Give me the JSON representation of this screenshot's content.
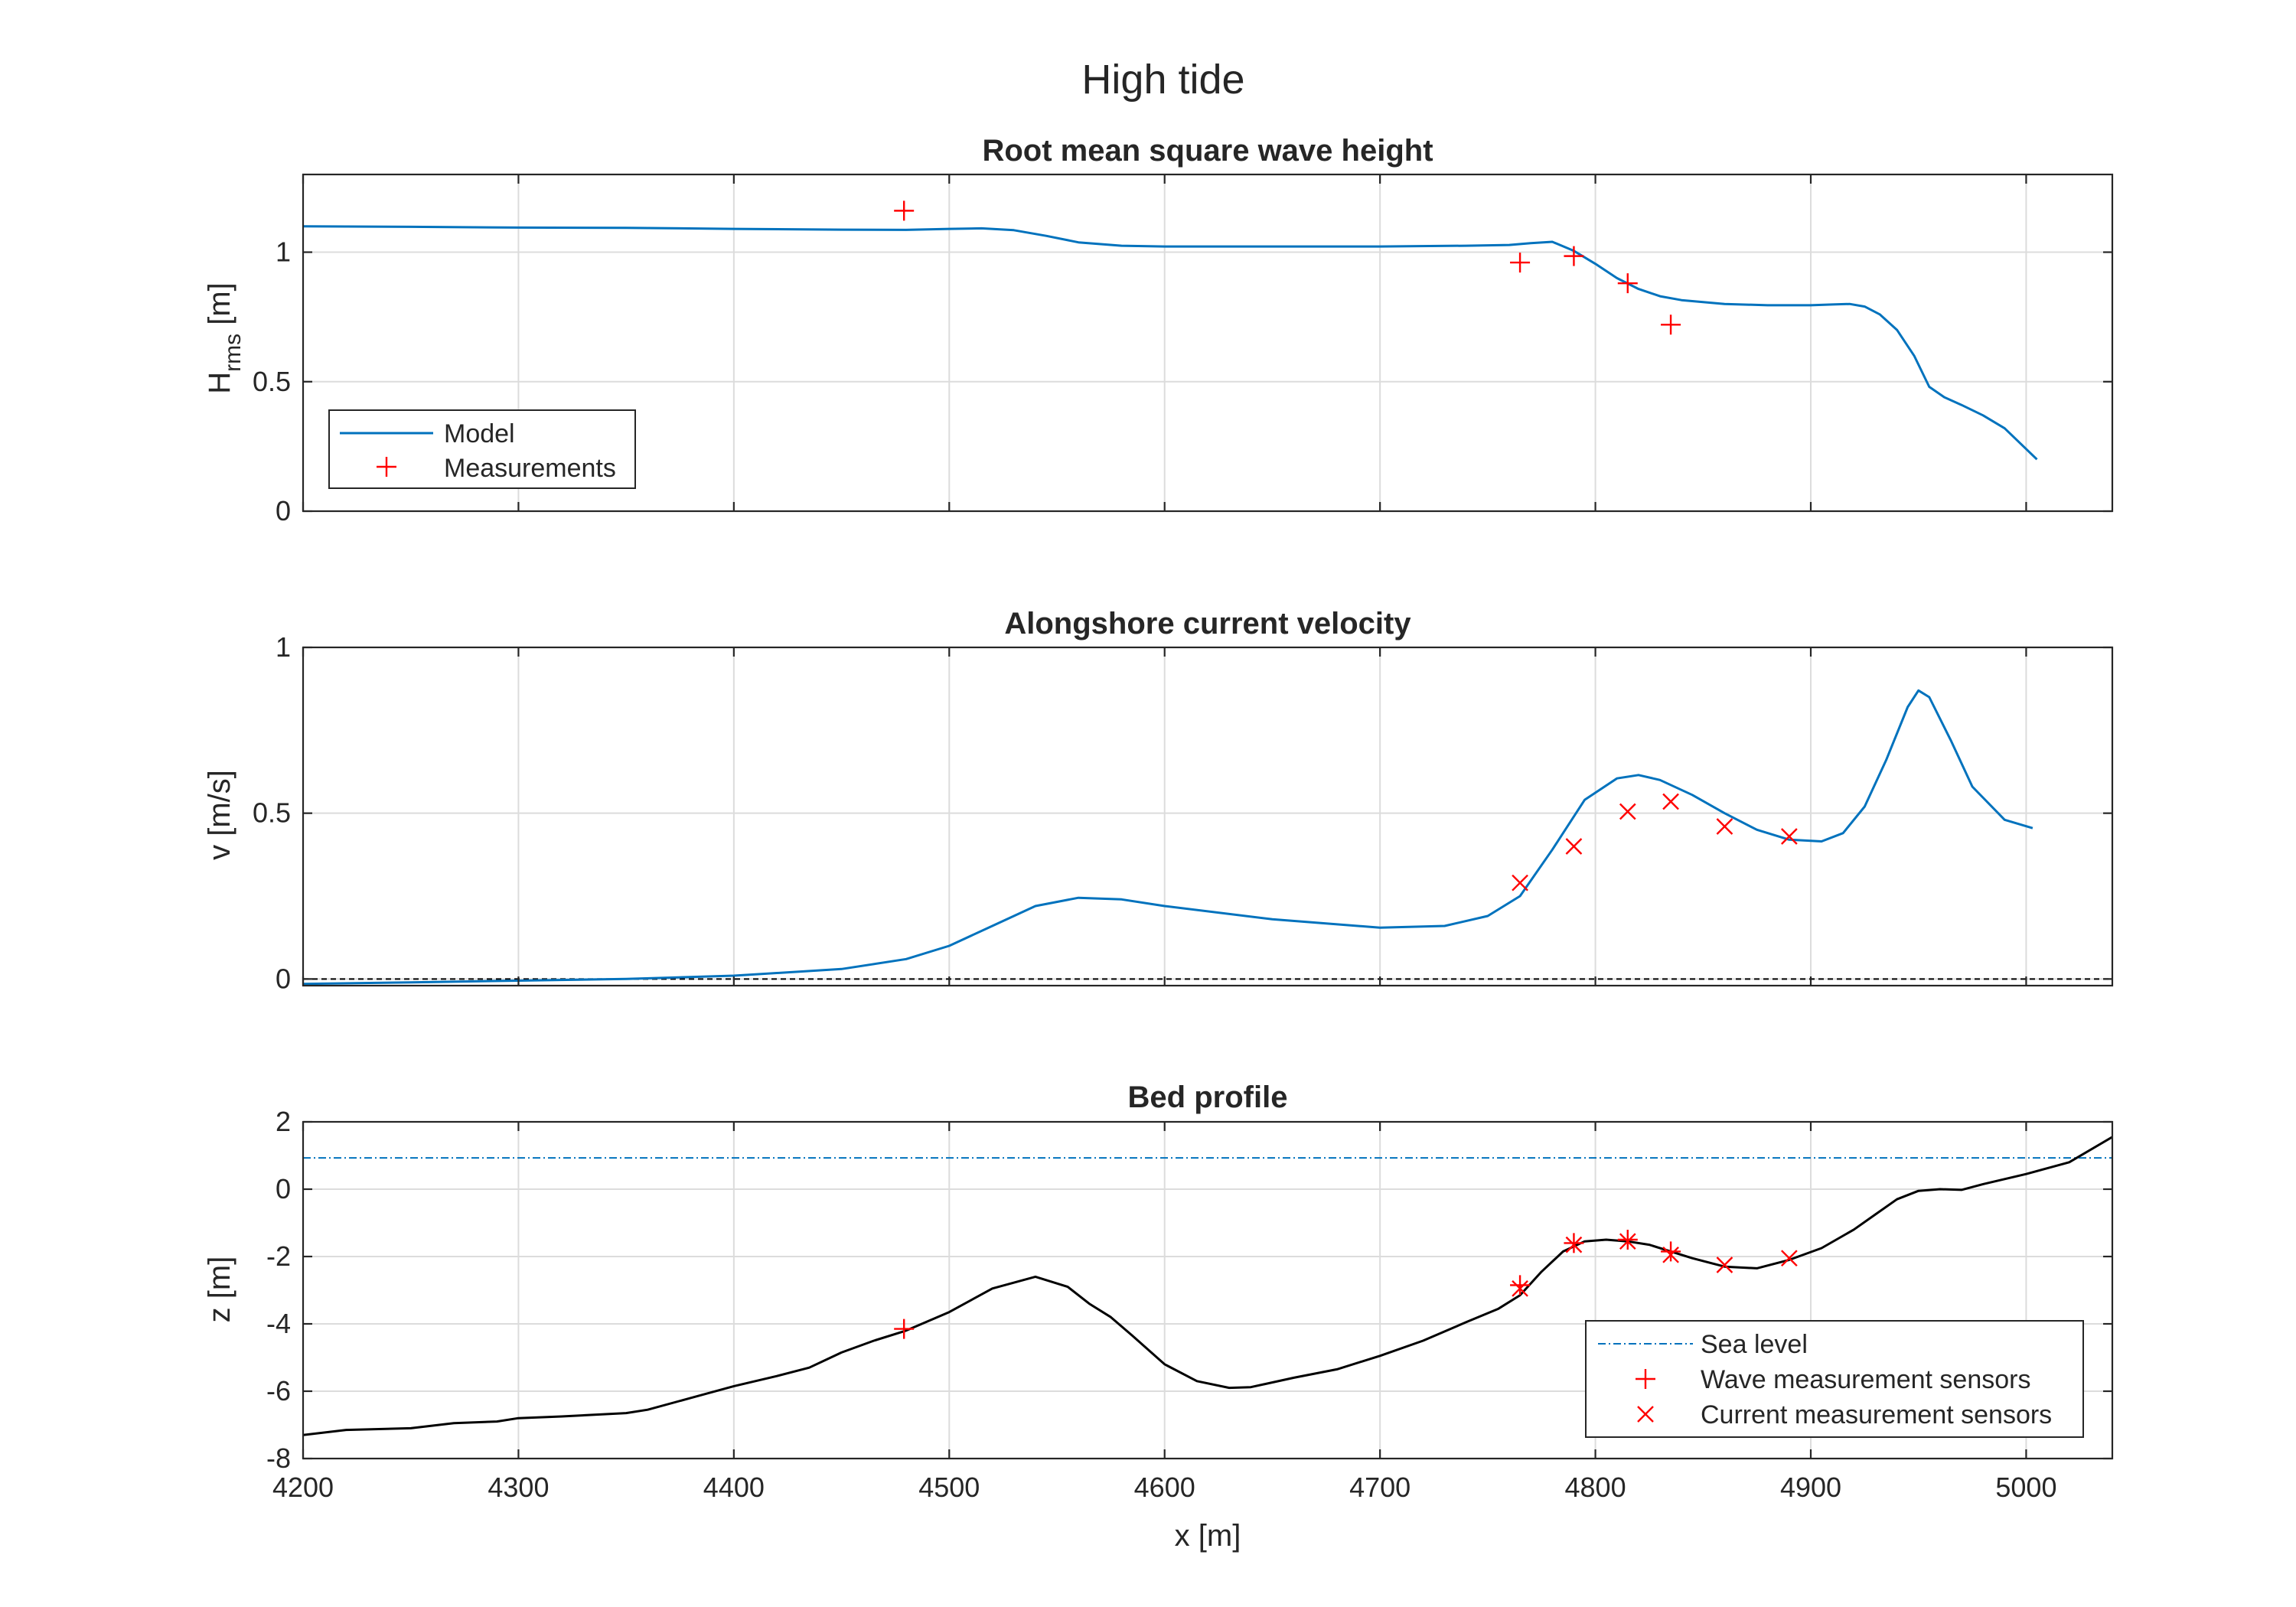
{
  "figure": {
    "title": "High tide"
  },
  "colors": {
    "model": "#0072BD",
    "measurement": "#FF0000",
    "bed": "#000000",
    "zero_line": "#000000",
    "sea_level": "#0072BD"
  },
  "chart_data": [
    {
      "type": "line",
      "title": "Root mean square wave height",
      "ylabel_main": "H",
      "ylabel_sub": "rms",
      "ylabel_unit": " [m]",
      "xlim": [
        4200,
        5040
      ],
      "ylim": [
        0,
        1.3
      ],
      "yticks": [
        0,
        0.5,
        1
      ],
      "ytick_labels": [
        "0",
        "0.5",
        "1"
      ],
      "grid": true,
      "legend": {
        "placement": "bottom-left",
        "entries": [
          "Model",
          "Measurements"
        ]
      },
      "series": [
        {
          "name": "Model",
          "kind": "line",
          "x": [
            4200,
            4250,
            4300,
            4350,
            4400,
            4450,
            4480,
            4500,
            4515,
            4530,
            4545,
            4560,
            4580,
            4600,
            4650,
            4700,
            4740,
            4760,
            4770,
            4780,
            4790,
            4800,
            4810,
            4820,
            4830,
            4840,
            4860,
            4880,
            4900,
            4910,
            4918,
            4925,
            4932,
            4940,
            4948,
            4955,
            4962,
            4970,
            4980,
            4990,
            5005
          ],
          "y": [
            1.1,
            1.098,
            1.095,
            1.094,
            1.09,
            1.087,
            1.086,
            1.09,
            1.092,
            1.085,
            1.063,
            1.038,
            1.025,
            1.022,
            1.022,
            1.022,
            1.025,
            1.028,
            1.035,
            1.04,
            1.005,
            0.955,
            0.9,
            0.858,
            0.83,
            0.815,
            0.8,
            0.795,
            0.795,
            0.798,
            0.8,
            0.79,
            0.76,
            0.7,
            0.6,
            0.48,
            0.44,
            0.41,
            0.37,
            0.32,
            0.2
          ]
        },
        {
          "name": "Measurements",
          "kind": "plus",
          "x": [
            4479,
            4765,
            4790,
            4815,
            4835
          ],
          "y": [
            1.16,
            0.96,
            0.985,
            0.88,
            0.72
          ]
        }
      ]
    },
    {
      "type": "line",
      "title": "Alongshore current velocity",
      "ylabel": "v [m/s]",
      "xlim": [
        4200,
        5040
      ],
      "ylim": [
        -0.02,
        1
      ],
      "yticks": [
        0,
        0.5,
        1
      ],
      "ytick_labels": [
        "0",
        "0.5",
        "1"
      ],
      "grid": true,
      "series": [
        {
          "kind": "line",
          "x": [
            4200,
            4250,
            4300,
            4350,
            4400,
            4450,
            4480,
            4500,
            4520,
            4540,
            4560,
            4580,
            4600,
            4650,
            4700,
            4730,
            4750,
            4765,
            4780,
            4795,
            4810,
            4820,
            4830,
            4845,
            4860,
            4875,
            4890,
            4905,
            4915,
            4925,
            4935,
            4945,
            4950,
            4955,
            4965,
            4975,
            4990,
            5003
          ],
          "y": [
            -0.015,
            -0.01,
            -0.005,
            0.0,
            0.01,
            0.03,
            0.06,
            0.1,
            0.16,
            0.22,
            0.245,
            0.24,
            0.22,
            0.18,
            0.155,
            0.16,
            0.19,
            0.25,
            0.39,
            0.54,
            0.605,
            0.615,
            0.6,
            0.555,
            0.5,
            0.45,
            0.42,
            0.415,
            0.44,
            0.52,
            0.66,
            0.82,
            0.87,
            0.85,
            0.72,
            0.58,
            0.48,
            0.455
          ]
        },
        {
          "kind": "cross",
          "x": [
            4765,
            4790,
            4815,
            4835,
            4860,
            4890
          ],
          "y": [
            0.29,
            0.4,
            0.505,
            0.535,
            0.46,
            0.43
          ]
        }
      ]
    },
    {
      "type": "line",
      "title": "Bed profile",
      "ylabel": "z [m]",
      "xlabel": "x [m]",
      "xlim": [
        4200,
        5040
      ],
      "ylim": [
        -8,
        2
      ],
      "yticks": [
        -8,
        -6,
        -4,
        -2,
        0,
        2
      ],
      "ytick_labels": [
        "-8",
        "-6",
        "-4",
        "-2",
        "0",
        "2"
      ],
      "xticks": [
        4200,
        4300,
        4400,
        4500,
        4600,
        4700,
        4800,
        4900,
        5000
      ],
      "xtick_labels": [
        "4200",
        "4300",
        "4400",
        "4500",
        "4600",
        "4700",
        "4800",
        "4900",
        "5000"
      ],
      "grid": true,
      "legend": {
        "placement": "bottom-right",
        "entries": [
          "Sea level",
          "Wave measurement sensors",
          "Current measurement sensors"
        ]
      },
      "series": [
        {
          "name": "Sea level",
          "kind": "dashdot",
          "x": [
            4200,
            5040
          ],
          "y": [
            0.93,
            0.93
          ]
        },
        {
          "kind": "bed",
          "x": [
            4200,
            4220,
            4250,
            4270,
            4290,
            4300,
            4320,
            4350,
            4360,
            4380,
            4400,
            4420,
            4435,
            4450,
            4465,
            4480,
            4500,
            4520,
            4540,
            4555,
            4565,
            4575,
            4585,
            4600,
            4615,
            4630,
            4640,
            4660,
            4680,
            4700,
            4720,
            4740,
            4755,
            4765,
            4775,
            4785,
            4795,
            4805,
            4815,
            4825,
            4835,
            4845,
            4860,
            4875,
            4890,
            4905,
            4920,
            4930,
            4940,
            4950,
            4960,
            4970,
            4980,
            5000,
            5020,
            5040
          ],
          "y": [
            -7.3,
            -7.15,
            -7.1,
            -6.95,
            -6.9,
            -6.8,
            -6.75,
            -6.65,
            -6.55,
            -6.2,
            -5.85,
            -5.55,
            -5.3,
            -4.85,
            -4.5,
            -4.2,
            -3.65,
            -2.95,
            -2.6,
            -2.9,
            -3.4,
            -3.8,
            -4.35,
            -5.2,
            -5.7,
            -5.9,
            -5.88,
            -5.6,
            -5.35,
            -4.95,
            -4.5,
            -3.95,
            -3.55,
            -3.15,
            -2.45,
            -1.85,
            -1.55,
            -1.5,
            -1.55,
            -1.65,
            -1.85,
            -2.05,
            -2.3,
            -2.35,
            -2.1,
            -1.75,
            -1.2,
            -0.75,
            -0.3,
            -0.05,
            0.0,
            -0.02,
            0.15,
            0.45,
            0.8,
            1.55
          ]
        },
        {
          "name": "Wave measurement sensors",
          "kind": "plus",
          "x": [
            4479,
            4765,
            4790,
            4815,
            4835
          ],
          "y": [
            -4.15,
            -2.85,
            -1.6,
            -1.5,
            -1.85
          ]
        },
        {
          "name": "Current measurement sensors",
          "kind": "cross",
          "x": [
            4765,
            4790,
            4815,
            4835,
            4860,
            4890
          ],
          "y": [
            -2.95,
            -1.65,
            -1.55,
            -1.95,
            -2.25,
            -2.05
          ]
        }
      ]
    }
  ]
}
